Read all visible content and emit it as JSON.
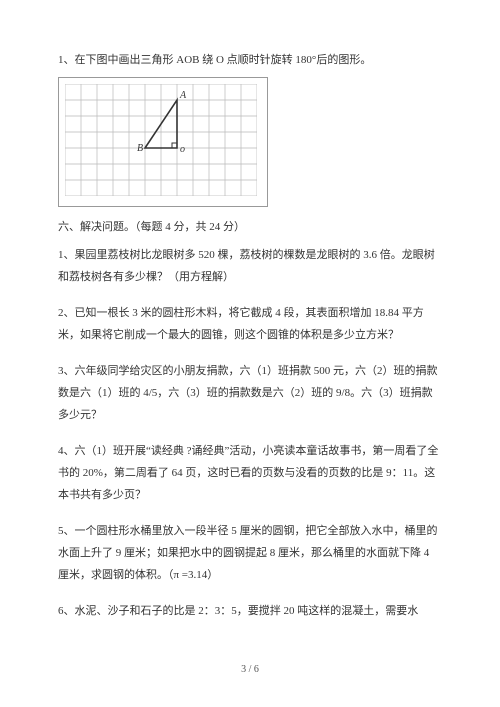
{
  "q1_intro": "1、在下图中画出三角形  AOB 绕 O 点顺时针旋转  180°后的图形。",
  "grid": {
    "cols": 12,
    "rows": 7,
    "cell": 16,
    "stroke": "#b8b8b8",
    "triangle_stroke": "#333333",
    "label_B": "B",
    "label_A": "A",
    "label_O": "o",
    "B": [
      5,
      4
    ],
    "A": [
      7,
      1
    ],
    "O": [
      7,
      4
    ]
  },
  "section6": "六、解决问题。（每题  4 分，共 24 分）",
  "p1": "1、果园里荔枝树比龙眼树多   520 棵，荔枝树的棵数是龙眼树的   3.6 倍。龙眼树和荔枝树各有多少棵？（用方程解）",
  "p2": "2、已知一根长  3 米的圆柱形木料，将它截成   4 段，其表面积增加  18.84 平方米，如果将它削成一个最大的圆锥，则这个圆锥的体积是多少立方米？",
  "p3": "3、六年级同学给灾区的小朋友捐款，六（1）班捐款 500 元，六（2）班的捐款数是六（1）班的 4/5，六（3）班的捐款数是六（2）班的 9/8。六（3）班捐款多少元？",
  "p4": "4、六（1）班开展“读经典 ?诵经典”活动，小亮读本童话故事书，第一周看了全书的 20%，第二周看了 64 页，这时已看的页数与没看的页数的比是 9：11。这本书共有多少页？",
  "p5": "5、一个圆柱形水桶里放入一段半径 5 厘米的圆钢，把它全部放入水中，桶里的水面上升了 9 厘米；如果把水中的圆钢提起 8 厘米，那么桶里的水面就下降 4 厘米，求圆钢的体积。（π =3.14）",
  "p6": "6、水泥、沙子和石子的比是  2：3：5，要搅拌 20 吨这样的混凝土，需要水",
  "page_num": "3 / 6"
}
